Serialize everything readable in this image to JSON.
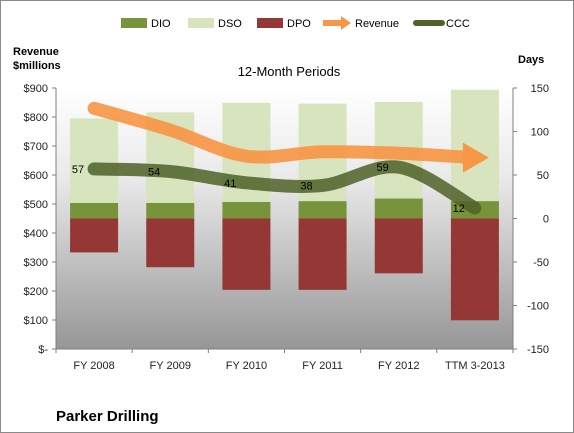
{
  "chart_data": {
    "type": "bar",
    "title": "12-Month Periods",
    "company": "Parker Drilling",
    "categories": [
      "FY 2008",
      "FY 2009",
      "FY 2010",
      "FY 2011",
      "FY 2012",
      "TTM 3-2013"
    ],
    "left_axis": {
      "title_line1": "Revenue",
      "title_line2": "$millions",
      "ylim": [
        0,
        900
      ],
      "ticks": [
        0,
        100,
        200,
        300,
        400,
        500,
        600,
        700,
        800,
        900
      ],
      "tick_labels": [
        "$-",
        "$100",
        "$200",
        "$300",
        "$400",
        "$500",
        "$600",
        "$700",
        "$800",
        "$900"
      ]
    },
    "right_axis": {
      "title": "Days",
      "ylim": [
        -150,
        150
      ],
      "ticks": [
        -150,
        -100,
        -50,
        0,
        50,
        100,
        150
      ],
      "tick_labels": [
        "-150",
        "-100",
        "-50",
        "0",
        "50",
        "100",
        "150"
      ]
    },
    "series": [
      {
        "name": "DIO",
        "axis": "days",
        "values": [
          18,
          18,
          19,
          20,
          23,
          20
        ],
        "color": "#77933c"
      },
      {
        "name": "DSO",
        "axis": "days",
        "values": [
          97,
          104,
          114,
          112,
          111,
          128
        ],
        "color": "#d7e4bd"
      },
      {
        "name": "DPO",
        "axis": "days",
        "values": [
          -39,
          -56,
          -82,
          -82,
          -63,
          -117
        ],
        "color": "#953735"
      },
      {
        "name": "Revenue",
        "axis": "revenue",
        "values": [
          830,
          755,
          665,
          680,
          675,
          660
        ],
        "color": "#f79646"
      },
      {
        "name": "CCC",
        "axis": "days",
        "values": [
          57,
          54,
          41,
          38,
          59,
          12
        ],
        "labels": [
          "57",
          "54",
          "41",
          "38",
          "59",
          "12"
        ],
        "color": "#4f6228"
      }
    ],
    "legend_position": "top",
    "grid": false
  }
}
